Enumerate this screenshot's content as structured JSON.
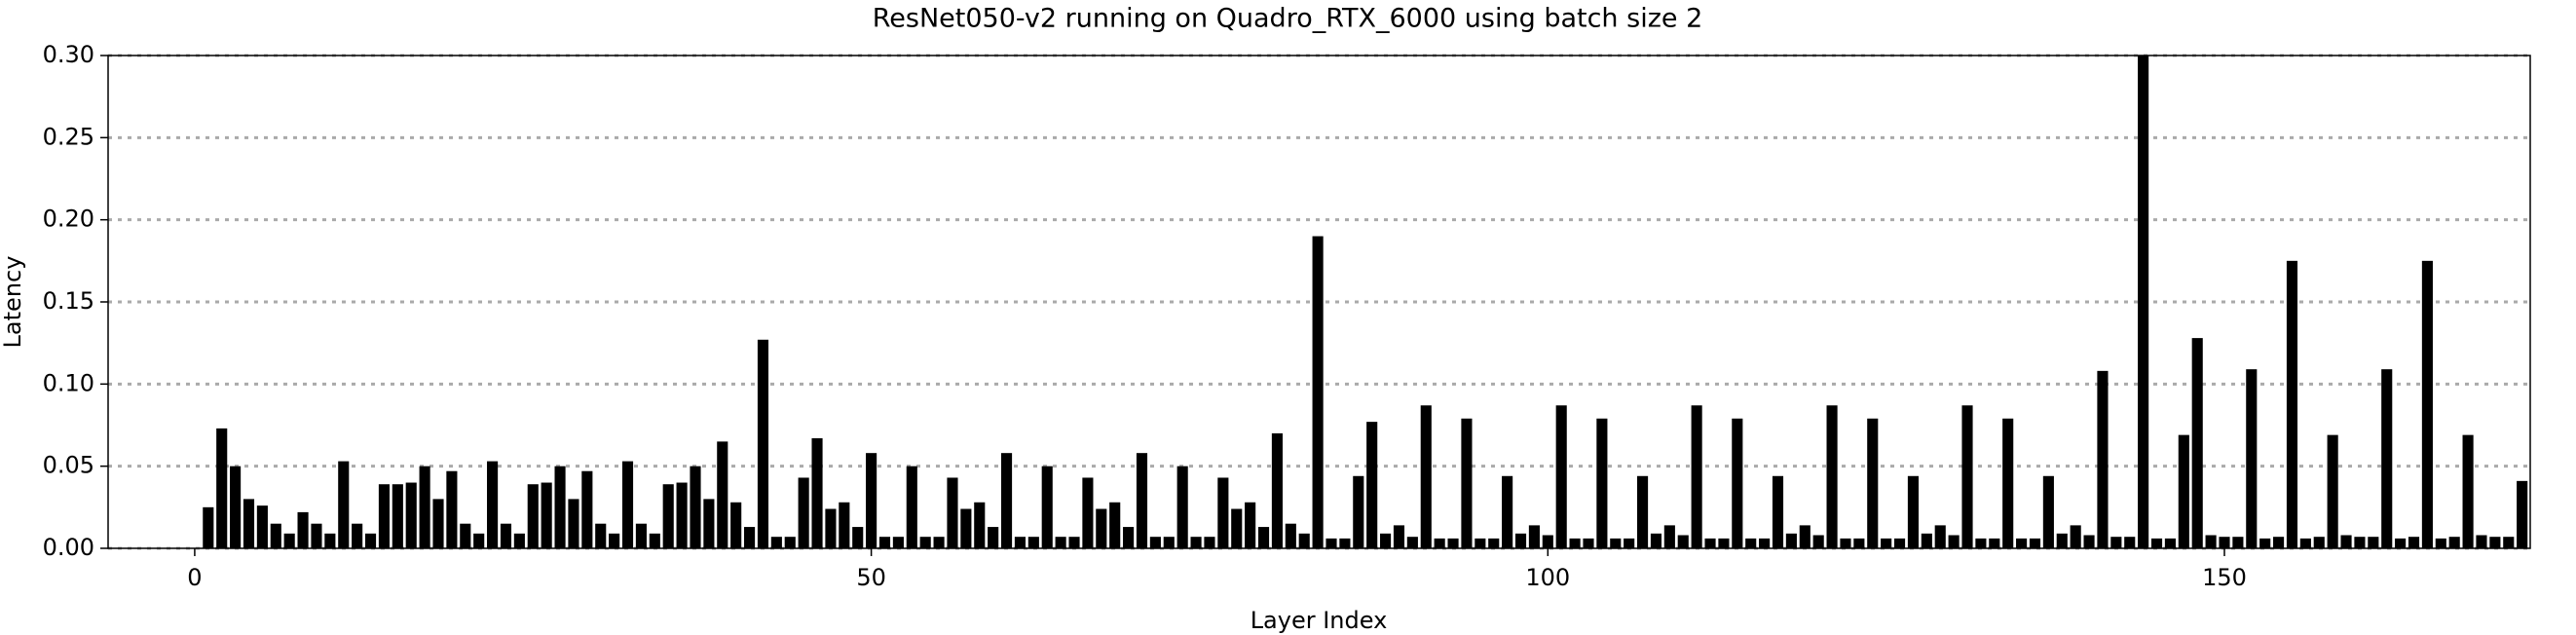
{
  "chart_data": {
    "type": "bar",
    "title": "ResNet050-v2 running on Quadro_RTX_6000 using batch size 2",
    "x_label": "Layer Index",
    "y_label": "Latency",
    "color": "#000000",
    "grid": true,
    "x": [
      0,
      1,
      2,
      3,
      4,
      5,
      6,
      7,
      8,
      9,
      10,
      11,
      12,
      13,
      14,
      15,
      16,
      17,
      18,
      19,
      20,
      21,
      22,
      23,
      24,
      25,
      26,
      27,
      28,
      29,
      30,
      31,
      32,
      33,
      34,
      35,
      36,
      37,
      38,
      39,
      40,
      41,
      42,
      43,
      44,
      45,
      46,
      47,
      48,
      49,
      50,
      51,
      52,
      53,
      54,
      55,
      56,
      57,
      58,
      59,
      60,
      61,
      62,
      63,
      64,
      65,
      66,
      67,
      68,
      69,
      70,
      71,
      72,
      73,
      74,
      75,
      76,
      77,
      78,
      79,
      80,
      81,
      82,
      83,
      84,
      85,
      86,
      87,
      88,
      89,
      90,
      91,
      92,
      93,
      94,
      95,
      96,
      97,
      98,
      99,
      100,
      101,
      102,
      103,
      104,
      105,
      106,
      107,
      108,
      109,
      110,
      111,
      112,
      113,
      114,
      115,
      116,
      117,
      118,
      119,
      120,
      121,
      122,
      123,
      124,
      125,
      126,
      127,
      128,
      129,
      130,
      131,
      132,
      133,
      134,
      135,
      136,
      137,
      138,
      139,
      140,
      141,
      142,
      143,
      144,
      145,
      146,
      147,
      148,
      149,
      150,
      151,
      152,
      153,
      154,
      155,
      156,
      157,
      158,
      159,
      160,
      161,
      162,
      163,
      164,
      165,
      166,
      167,
      168,
      169,
      170,
      171,
      172
    ],
    "values": [
      0,
      0.025,
      0.073,
      0.05,
      0.03,
      0.026,
      0.015,
      0.009,
      0.022,
      0.015,
      0.009,
      0.053,
      0.015,
      0.009,
      0.039,
      0.039,
      0.04,
      0.05,
      0.03,
      0.047,
      0.015,
      0.009,
      0.053,
      0.015,
      0.009,
      0.039,
      0.04,
      0.05,
      0.03,
      0.047,
      0.015,
      0.009,
      0.053,
      0.015,
      0.009,
      0.039,
      0.04,
      0.05,
      0.03,
      0.065,
      0.028,
      0.013,
      0.127,
      0.007,
      0.007,
      0.043,
      0.067,
      0.024,
      0.028,
      0.013,
      0.058,
      0.007,
      0.007,
      0.05,
      0.007,
      0.007,
      0.043,
      0.024,
      0.028,
      0.013,
      0.058,
      0.007,
      0.007,
      0.05,
      0.007,
      0.007,
      0.043,
      0.024,
      0.028,
      0.013,
      0.058,
      0.007,
      0.007,
      0.05,
      0.007,
      0.007,
      0.043,
      0.024,
      0.028,
      0.013,
      0.07,
      0.015,
      0.009,
      0.19,
      0.006,
      0.006,
      0.044,
      0.077,
      0.009,
      0.014,
      0.007,
      0.087,
      0.006,
      0.006,
      0.079,
      0.006,
      0.006,
      0.044,
      0.009,
      0.014,
      0.008,
      0.087,
      0.006,
      0.006,
      0.079,
      0.006,
      0.006,
      0.044,
      0.009,
      0.014,
      0.008,
      0.087,
      0.006,
      0.006,
      0.079,
      0.006,
      0.006,
      0.044,
      0.009,
      0.014,
      0.008,
      0.087,
      0.006,
      0.006,
      0.079,
      0.006,
      0.006,
      0.044,
      0.009,
      0.014,
      0.008,
      0.087,
      0.006,
      0.006,
      0.079,
      0.006,
      0.006,
      0.044,
      0.009,
      0.014,
      0.008,
      0.108,
      0.007,
      0.007,
      0.3,
      0.006,
      0.006,
      0.069,
      0.128,
      0.008,
      0.007,
      0.007,
      0.109,
      0.006,
      0.007,
      0.175,
      0.006,
      0.007,
      0.069,
      0.008,
      0.007,
      0.007,
      0.109,
      0.006,
      0.007,
      0.175,
      0.006,
      0.007,
      0.069,
      0.008,
      0.007,
      0.007,
      0.041
    ],
    "xlim": [
      -6.4,
      172.6
    ],
    "xticks": [
      0,
      50,
      100,
      150
    ],
    "ylim": [
      0,
      0.3
    ],
    "yticks": [
      {
        "value": 0,
        "label": "0.00"
      },
      {
        "value": 0.05,
        "label": "0.05"
      },
      {
        "value": 0.1,
        "label": "0.10"
      },
      {
        "value": 0.15,
        "label": "0.15"
      },
      {
        "value": 0.2,
        "label": "0.20"
      },
      {
        "value": 0.25,
        "label": "0.25"
      },
      {
        "value": 0.3,
        "label": "0.30"
      }
    ]
  }
}
